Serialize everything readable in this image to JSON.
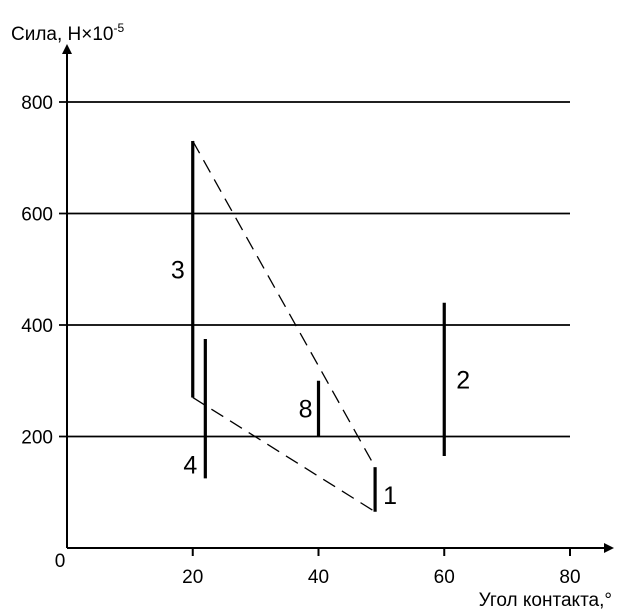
{
  "chart_data": {
    "type": "range",
    "ylabel": "Сила, Н×10",
    "ylabel_exp": "-5",
    "xlabel": "Угол контакта,°",
    "origin_label": "0",
    "xlim": [
      0,
      80
    ],
    "ylim": [
      0,
      800
    ],
    "x_ticks": [
      20,
      40,
      60,
      80
    ],
    "y_ticks": [
      200,
      400,
      600,
      800
    ],
    "grid": "horizontal",
    "ranges": [
      {
        "label": "1",
        "x": 49,
        "y_min": 65,
        "y_max": 145
      },
      {
        "label": "2",
        "x": 60,
        "y_min": 165,
        "y_max": 440
      },
      {
        "label": "3",
        "x": 20,
        "y_min": 270,
        "y_max": 730
      },
      {
        "label": "4",
        "x": 22,
        "y_min": 125,
        "y_max": 375
      },
      {
        "label": "8",
        "x": 40,
        "y_min": 200,
        "y_max": 300
      }
    ],
    "envelope": [
      {
        "x": 20,
        "y": 730
      },
      {
        "x": 49,
        "y": 145
      },
      {
        "x": 49,
        "y": 65
      },
      {
        "x": 20,
        "y": 270
      }
    ]
  }
}
